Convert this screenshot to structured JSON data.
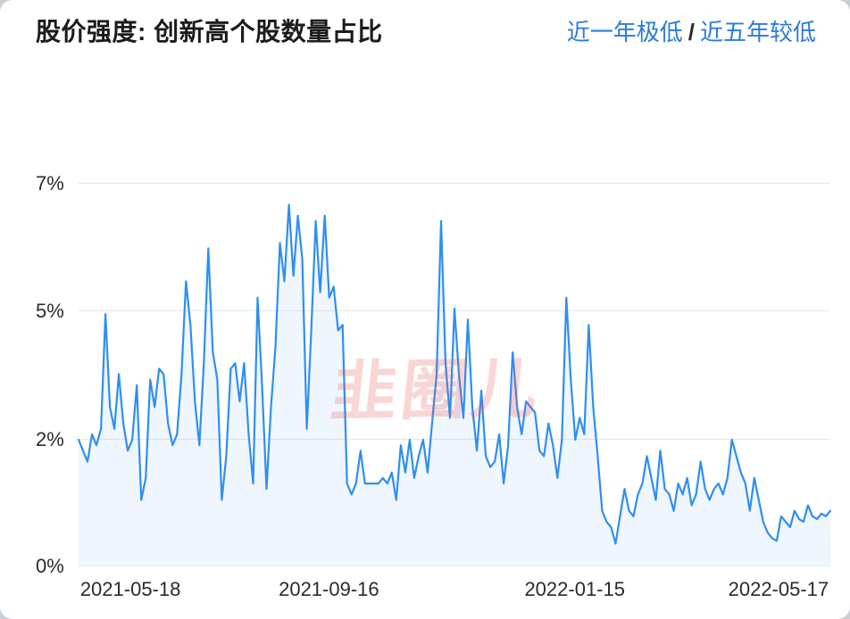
{
  "header": {
    "title": "股价强度: 创新高个股数量占比",
    "status_primary": "近一年极低",
    "status_separator": "/",
    "status_secondary": "近五年较低",
    "status_color": "#2b7cd9"
  },
  "watermark": "韭圈儿",
  "chart_data": {
    "type": "area",
    "title": "股价强度: 创新高个股数量占比",
    "series_name": "创新高个股数量占比",
    "unit": "%",
    "xlabel": "",
    "ylabel": "",
    "ylim": [
      0,
      7
    ],
    "y_tick_labels": [
      "7%",
      "5%",
      "2%",
      "0%"
    ],
    "y_tick_values": [
      7,
      4.67,
      2.33,
      0
    ],
    "x_tick_labels": [
      "2021-05-18",
      "2021-09-16",
      "2022-01-15",
      "2022-05-17"
    ],
    "x_tick_positions_pct": [
      6.9,
      33.3,
      66.0,
      93.1
    ],
    "grid": "horizontal-only",
    "legend": "none",
    "line_color": "#2f8ff0",
    "fill_color": "rgba(47, 143, 240, 0.08)",
    "values": [
      2.3,
      2.1,
      1.9,
      2.4,
      2.2,
      2.5,
      4.6,
      2.9,
      2.5,
      3.5,
      2.6,
      2.1,
      2.3,
      3.3,
      1.2,
      1.6,
      3.4,
      2.9,
      3.6,
      3.5,
      2.6,
      2.2,
      2.4,
      3.5,
      5.2,
      4.4,
      3.0,
      2.2,
      3.7,
      5.8,
      3.9,
      3.4,
      1.2,
      2.0,
      3.6,
      3.7,
      3.0,
      3.7,
      2.4,
      1.5,
      4.9,
      3.3,
      1.4,
      2.9,
      4.0,
      5.9,
      5.2,
      6.6,
      5.3,
      6.4,
      5.6,
      2.5,
      4.3,
      6.3,
      5.0,
      6.4,
      4.9,
      5.1,
      4.3,
      4.4,
      1.5,
      1.3,
      1.5,
      2.1,
      1.5,
      1.5,
      1.5,
      1.5,
      1.6,
      1.5,
      1.7,
      1.2,
      2.2,
      1.7,
      2.3,
      1.6,
      2.0,
      2.3,
      1.7,
      2.6,
      3.5,
      6.3,
      3.7,
      2.7,
      4.7,
      3.5,
      2.7,
      4.5,
      2.9,
      2.1,
      3.2,
      2.0,
      1.8,
      1.9,
      2.4,
      1.5,
      2.2,
      3.9,
      2.9,
      2.4,
      3.0,
      2.9,
      2.8,
      2.1,
      2.0,
      2.6,
      2.2,
      1.6,
      2.3,
      4.9,
      3.4,
      2.3,
      2.7,
      2.4,
      4.4,
      2.9,
      2.0,
      1.0,
      0.8,
      0.7,
      0.4,
      0.9,
      1.4,
      1.0,
      0.9,
      1.3,
      1.5,
      2.0,
      1.6,
      1.2,
      2.1,
      1.4,
      1.3,
      1.0,
      1.5,
      1.3,
      1.6,
      1.1,
      1.3,
      1.9,
      1.4,
      1.2,
      1.4,
      1.5,
      1.3,
      1.6,
      2.3,
      2.0,
      1.7,
      1.5,
      1.0,
      1.6,
      1.2,
      0.8,
      0.6,
      0.5,
      0.45,
      0.9,
      0.8,
      0.7,
      1.0,
      0.85,
      0.8,
      1.1,
      0.9,
      0.85,
      0.95,
      0.9,
      1.0
    ]
  }
}
